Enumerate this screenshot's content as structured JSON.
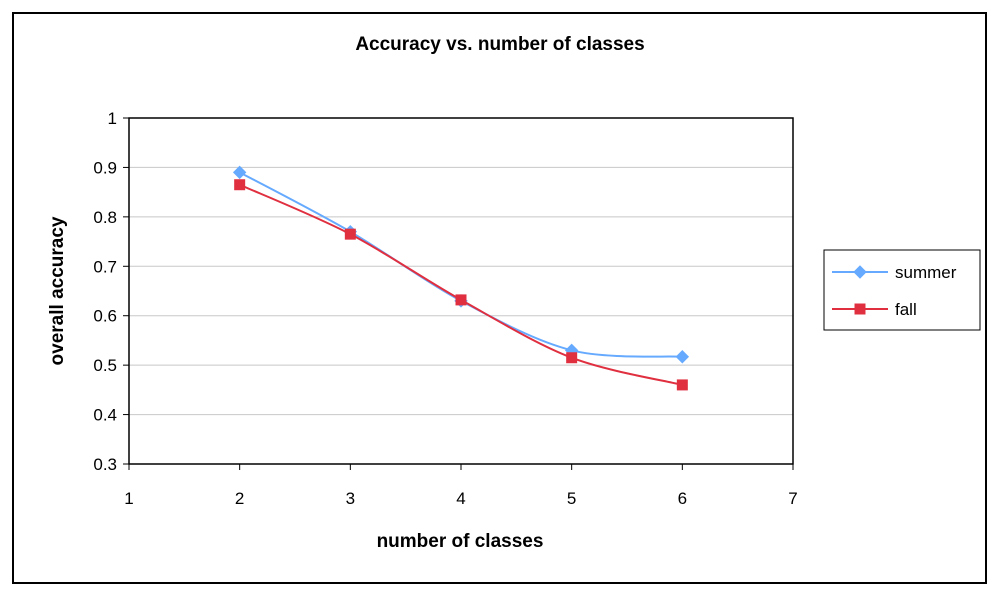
{
  "chart_data": {
    "type": "line",
    "title": "Accuracy vs. number of classes",
    "xlabel": "number of classes",
    "ylabel": "overall accuracy",
    "xlim": [
      1,
      7
    ],
    "ylim": [
      0.3,
      1
    ],
    "x_ticks": [
      "1",
      "2",
      "3",
      "4",
      "5",
      "6",
      "7"
    ],
    "y_ticks": [
      "0.3",
      "0.4",
      "0.5",
      "0.6",
      "0.7",
      "0.8",
      "0.9",
      "1"
    ],
    "grid": "horizontal",
    "legend_position": "right",
    "x": [
      2,
      3,
      4,
      5,
      6
    ],
    "series": [
      {
        "name": "summer",
        "values": [
          0.89,
          0.77,
          0.63,
          0.53,
          0.517
        ],
        "color": "#66aaff",
        "marker": "diamond"
      },
      {
        "name": "fall",
        "values": [
          0.865,
          0.765,
          0.632,
          0.515,
          0.46
        ],
        "color": "#e03040",
        "marker": "square"
      }
    ]
  }
}
